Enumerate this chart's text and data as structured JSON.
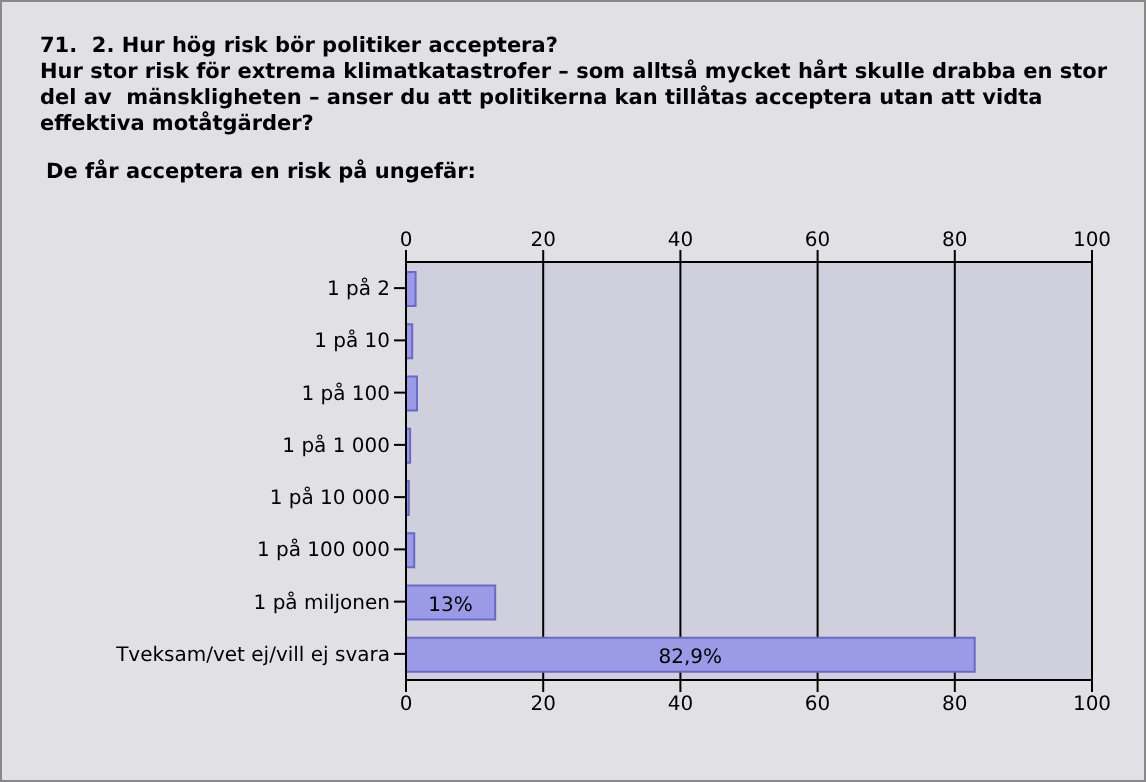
{
  "chart_data": {
    "type": "bar",
    "orientation": "horizontal",
    "title": "71.  2. Hur hög risk bör politiker acceptera?\nHur stor risk för extrema klimatkatastrofer – som alltså mycket hårt skulle drabba en stor\ndel av  mänskligheten – anser du att politikerna kan tillåtas acceptera utan att vidta\neffektiva motåtgärder?",
    "subtitle": "De får acceptera en risk på ungefär:",
    "categories": [
      "1 på 2",
      "1 på 10",
      "1 på 100",
      "1 på 1 000",
      "1 på 10 000",
      "1 på 100 000",
      "1 på miljonen",
      "Tveksam/vet ej/vill ej svara"
    ],
    "values": [
      1.4,
      0.9,
      1.6,
      0.6,
      0.4,
      1.2,
      13,
      82.9
    ],
    "value_labels": [
      null,
      null,
      null,
      null,
      null,
      null,
      "13%",
      "82,9%"
    ],
    "color": "#9a9ae6",
    "xlim": [
      0,
      100
    ],
    "xticks": [
      0,
      20,
      40,
      60,
      80,
      100
    ],
    "x2lim": [
      0,
      100
    ],
    "x2ticks": [
      0,
      20,
      40,
      60,
      80,
      100
    ],
    "grid": "x"
  }
}
